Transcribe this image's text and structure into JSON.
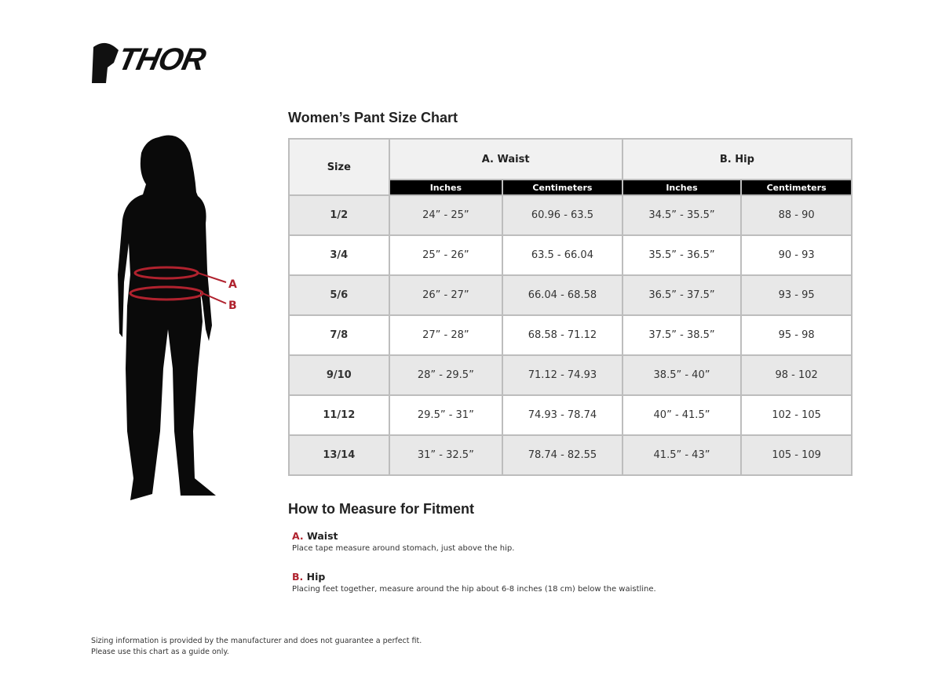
{
  "brand": {
    "logo_text": "THOR"
  },
  "chart_title": "Women’s Pant Size Chart",
  "table": {
    "size_header": "Size",
    "groups": [
      "A. Waist",
      "B. Hip"
    ],
    "sub_headers": [
      "Inches",
      "Centimeters",
      "Inches",
      "Centimeters"
    ],
    "rows": [
      [
        "1/2",
        "24” - 25”",
        "60.96 - 63.5",
        "34.5” - 35.5”",
        "88 - 90"
      ],
      [
        "3/4",
        "25” - 26”",
        "63.5 - 66.04",
        "35.5” - 36.5”",
        "90 - 93"
      ],
      [
        "5/6",
        "26” - 27”",
        "66.04 - 68.58",
        "36.5” - 37.5”",
        "93 - 95"
      ],
      [
        "7/8",
        "27” - 28”",
        "68.58 - 71.12",
        "37.5” - 38.5”",
        "95 - 98"
      ],
      [
        "9/10",
        "28” - 29.5”",
        "71.12 - 74.93",
        "38.5” - 40”",
        "98 - 102"
      ],
      [
        "11/12",
        "29.5” - 31”",
        "74.93 - 78.74",
        "40” - 41.5”",
        "102 - 105"
      ],
      [
        "13/14",
        "31” - 32.5”",
        "78.74 - 82.55",
        "41.5” - 43”",
        "105 - 109"
      ]
    ]
  },
  "figure": {
    "label_a": "A",
    "label_b": "B",
    "accent": "#b0222e"
  },
  "how_to": {
    "title": "How to Measure for Fitment",
    "items": [
      {
        "letter": "A.",
        "name": "Waist",
        "desc": "Place tape measure around stomach, just above the hip."
      },
      {
        "letter": "B.",
        "name": "Hip",
        "desc": "Placing feet together, measure around the hip about 6-8 inches (18 cm) below the waistline."
      }
    ]
  },
  "disclaimer": [
    "Sizing information is provided by the manufacturer and does not guarantee a perfect fit.",
    "Please use this chart as a guide only."
  ]
}
